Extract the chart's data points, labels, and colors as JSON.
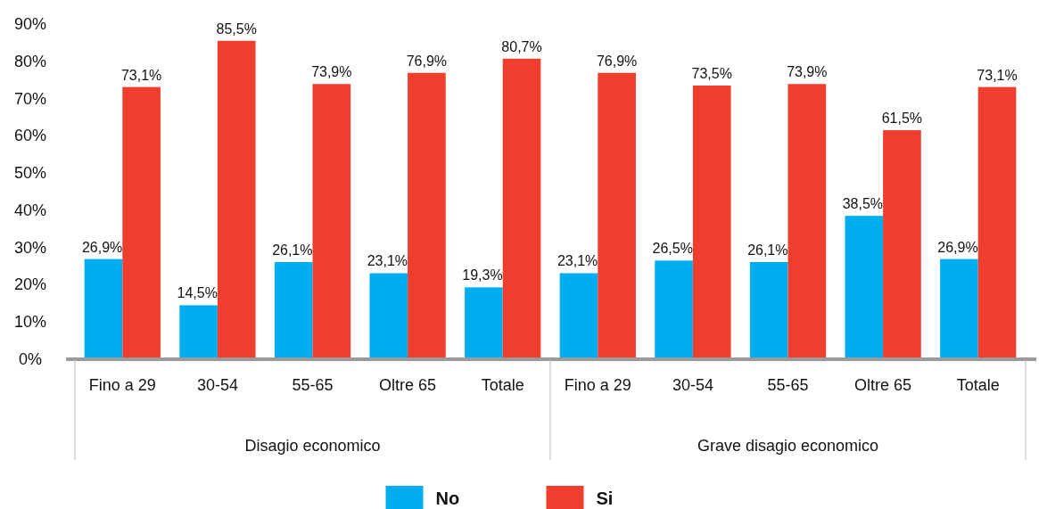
{
  "chart_data": {
    "type": "bar",
    "categories": [
      "Fino a 29",
      "30-54",
      "55-65",
      "Oltre 65",
      "Totale",
      "Fino a 29",
      "30-54",
      "55-65",
      "Oltre 65",
      "Totale"
    ],
    "series": [
      {
        "name": "No",
        "color": "#00aeef",
        "values": [
          26.9,
          14.5,
          26.1,
          23.1,
          19.3,
          23.1,
          26.5,
          26.1,
          38.5,
          26.9
        ],
        "value_labels": [
          "26,9%",
          "14,5%",
          "26,1%",
          "23,1%",
          "19,3%",
          "23,1%",
          "26,5%",
          "26,1%",
          "38,5%",
          "26,9%"
        ]
      },
      {
        "name": "Si",
        "color": "#ef3e2e",
        "values": [
          73.1,
          85.5,
          73.9,
          76.9,
          80.7,
          76.9,
          73.5,
          73.9,
          61.5,
          73.1
        ],
        "value_labels": [
          "73,1%",
          "85,5%",
          "73,9%",
          "76,9%",
          "80,7%",
          "76,9%",
          "73,5%",
          "73,9%",
          "61,5%",
          "73,1%"
        ]
      }
    ],
    "annotations": [
      "Disagio economico",
      "Grave disagio economico"
    ],
    "ylim": [
      0,
      90
    ],
    "yticks": [
      {
        "value": 0,
        "label": "0%"
      },
      {
        "value": 10,
        "label": "10%"
      },
      {
        "value": 20,
        "label": "20%"
      },
      {
        "value": 30,
        "label": "30%"
      },
      {
        "value": 40,
        "label": "40%"
      },
      {
        "value": 50,
        "label": "50%"
      },
      {
        "value": 60,
        "label": "60%"
      },
      {
        "value": 70,
        "label": "70%"
      },
      {
        "value": 80,
        "label": "80%"
      },
      {
        "value": 90,
        "label": "90%"
      }
    ],
    "grid": false,
    "legend": "bottom"
  }
}
